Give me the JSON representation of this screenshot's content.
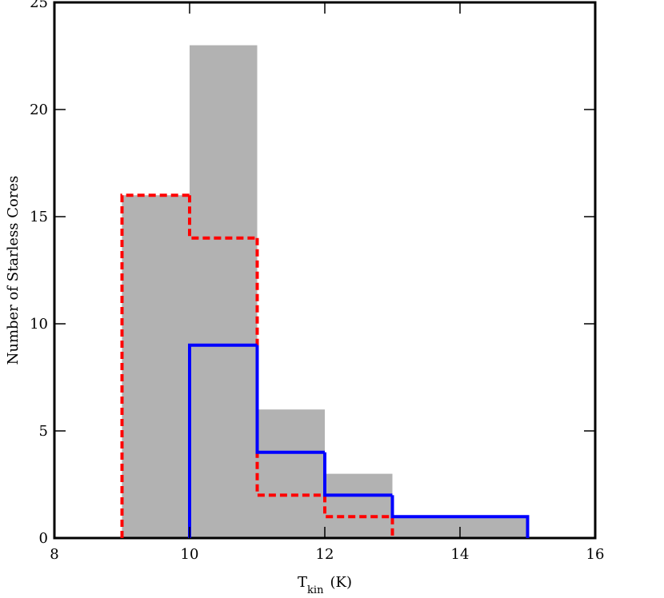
{
  "chart_data": {
    "type": "histogram",
    "xlabel": {
      "main": "T",
      "sub": "kin",
      "unit": "(K)"
    },
    "ylabel": "Number of Starless Cores",
    "xlim": [
      8,
      16
    ],
    "xticks": [
      8,
      10,
      12,
      14,
      16
    ],
    "ylim": [
      0,
      25
    ],
    "yticks": [
      0,
      5,
      10,
      15,
      20,
      25
    ],
    "series": [
      {
        "color": "#b2b2b2",
        "style": "filled",
        "bins": [
          9,
          10,
          11,
          12,
          13,
          14,
          15
        ],
        "values": [
          16,
          23,
          6,
          3,
          1,
          1
        ]
      },
      {
        "color": "#ff0000",
        "style": "dashed",
        "bins": [
          9,
          10,
          11,
          12,
          13
        ],
        "values": [
          16,
          14,
          2,
          1
        ]
      },
      {
        "color": "#0000ff",
        "style": "solid",
        "bins": [
          10,
          11,
          12,
          13,
          14,
          15
        ],
        "values": [
          9,
          4,
          2,
          1,
          1
        ]
      }
    ]
  }
}
